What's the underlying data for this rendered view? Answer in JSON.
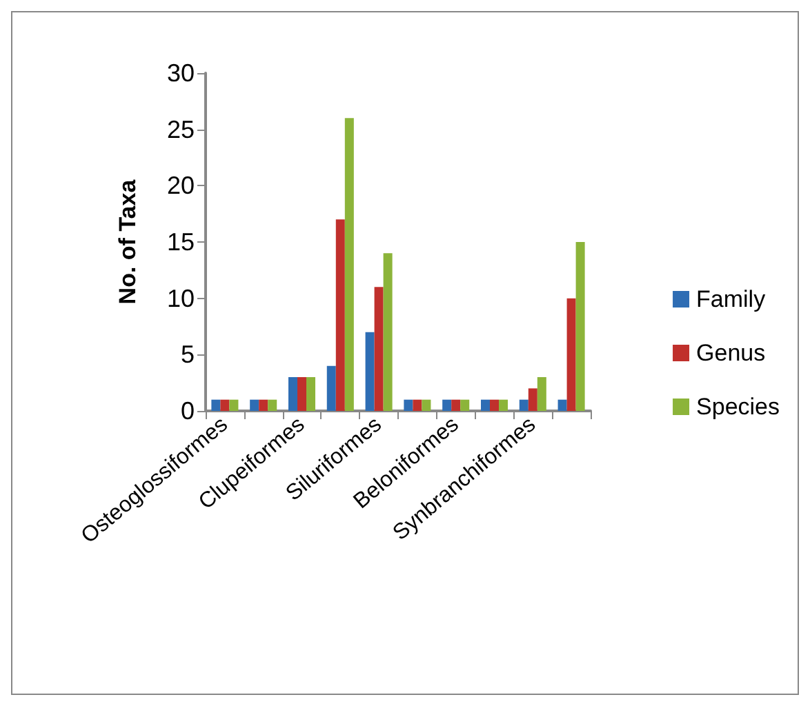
{
  "chart_data": {
    "type": "bar",
    "ylabel": "No. of Taxa",
    "categories": [
      "Osteoglossiformes",
      null,
      "Clupeiformes",
      null,
      "Siluriformes",
      null,
      "Beloniformes",
      null,
      "Synbranchiformes",
      null
    ],
    "series": [
      {
        "name": "Family",
        "color": "#2e6db4",
        "values": [
          1,
          1,
          3,
          4,
          7,
          1,
          1,
          1,
          1,
          1
        ]
      },
      {
        "name": "Genus",
        "color": "#c0302c",
        "values": [
          1,
          1,
          3,
          17,
          11,
          1,
          1,
          1,
          2,
          10
        ]
      },
      {
        "name": "Species",
        "color": "#8cb43a",
        "values": [
          1,
          1,
          3,
          26,
          14,
          1,
          1,
          1,
          3,
          15
        ]
      }
    ],
    "ylim": [
      0,
      30
    ],
    "yticks": [
      0,
      5,
      10,
      15,
      20,
      25,
      30
    ],
    "grid": false,
    "legend": "right"
  }
}
